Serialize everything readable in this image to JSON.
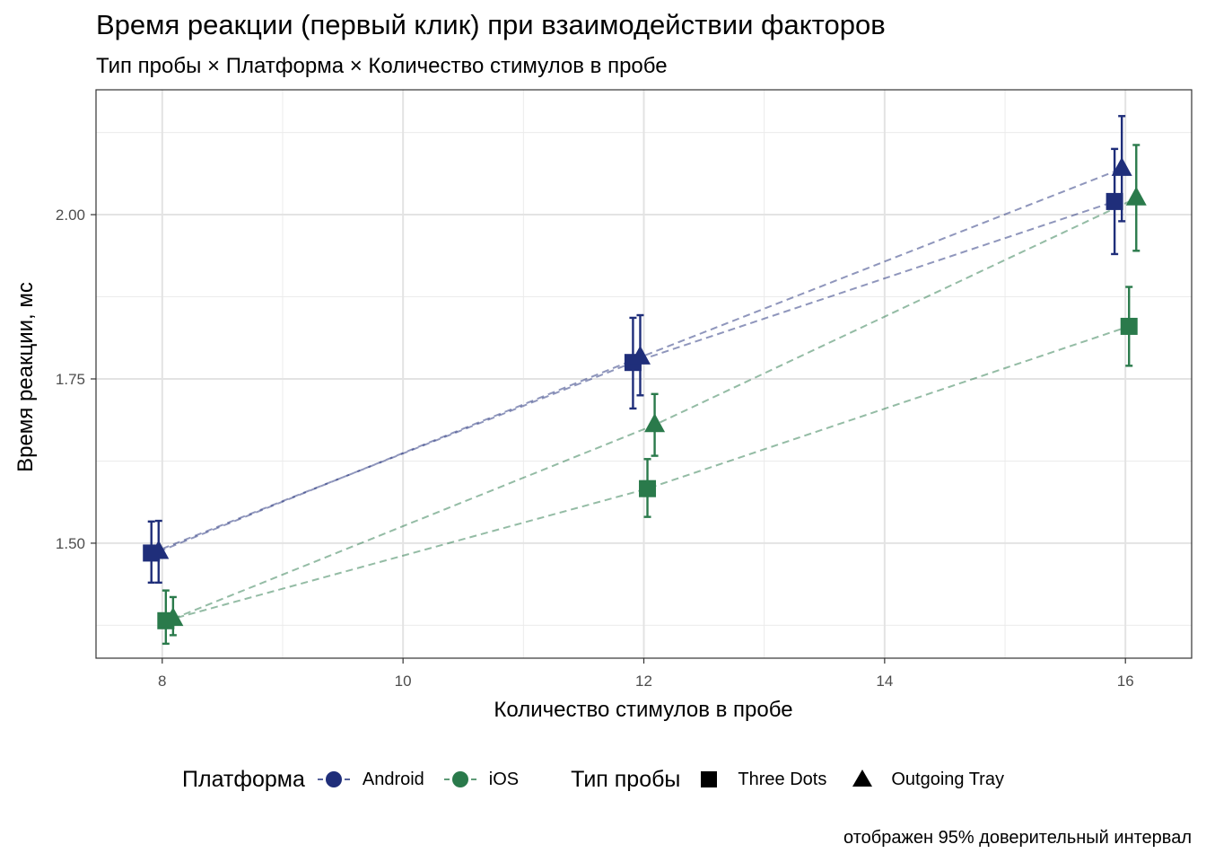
{
  "title": "Время реакции (первый клик) при взаимодействии факторов",
  "subtitle": "Тип пробы × Платформа × Количество стимулов в пробе",
  "caption": "отображен 95% доверительный интервал",
  "legend": {
    "platform_title": "Платформа",
    "platforms": [
      {
        "label": "Android",
        "color": "#1f2e7a"
      },
      {
        "label": "iOS",
        "color": "#2a7a4b"
      }
    ],
    "probe_title": "Тип пробы",
    "probes": [
      {
        "label": "Three Dots",
        "shape": "square-icon"
      },
      {
        "label": "Outgoing Tray",
        "shape": "triangle-icon"
      }
    ]
  },
  "chart_data": {
    "type": "scatter",
    "xlabel": "Количество стимулов в пробе",
    "ylabel": "Время реакции, мс",
    "xlim": [
      7.45,
      16.55
    ],
    "ylim": [
      1.325,
      2.19
    ],
    "x_ticks": [
      8,
      10,
      12,
      14,
      16
    ],
    "x_tick_labels": [
      "8",
      "10",
      "12",
      "14",
      "16"
    ],
    "y_ticks": [
      1.5,
      1.75,
      2.0
    ],
    "y_tick_labels": [
      "1.50",
      "1.75",
      "2.00"
    ],
    "grid": true,
    "legend_position": "bottom",
    "series": [
      {
        "name": "Android",
        "probe": "Three Dots",
        "shape": "square",
        "color": "#1f2e7a",
        "dodge": -0.09,
        "x": [
          8,
          12,
          16
        ],
        "y": [
          1.485,
          1.775,
          2.02
        ],
        "lower": [
          1.44,
          1.705,
          1.94
        ],
        "upper": [
          1.533,
          1.843,
          2.1
        ]
      },
      {
        "name": "Android",
        "probe": "Outgoing Tray",
        "shape": "triangle",
        "color": "#1f2e7a",
        "dodge": -0.03,
        "x": [
          8,
          12,
          16
        ],
        "y": [
          1.487,
          1.783,
          2.07
        ],
        "lower": [
          1.44,
          1.725,
          1.99
        ],
        "upper": [
          1.534,
          1.847,
          2.15
        ]
      },
      {
        "name": "iOS",
        "probe": "Three Dots",
        "shape": "square",
        "color": "#2a7a4b",
        "dodge": 0.03,
        "x": [
          8,
          12,
          16
        ],
        "y": [
          1.382,
          1.583,
          1.83
        ],
        "lower": [
          1.347,
          1.54,
          1.77
        ],
        "upper": [
          1.428,
          1.628,
          1.89
        ]
      },
      {
        "name": "iOS",
        "probe": "Outgoing Tray",
        "shape": "triangle",
        "color": "#2a7a4b",
        "dodge": 0.09,
        "x": [
          8,
          12,
          16
        ],
        "y": [
          1.385,
          1.68,
          2.025
        ],
        "lower": [
          1.36,
          1.633,
          1.945
        ],
        "upper": [
          1.418,
          1.727,
          2.106
        ]
      }
    ]
  }
}
